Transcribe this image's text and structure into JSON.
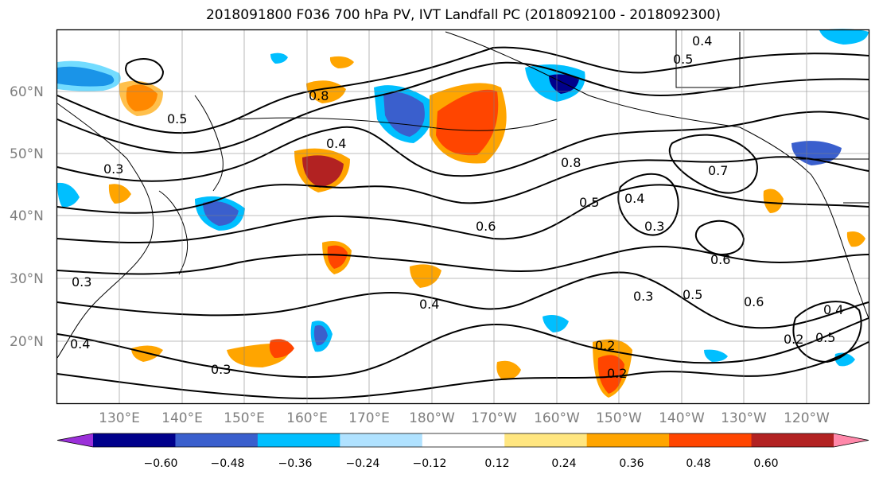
{
  "title": "2018091800 F036 700 hPa PV, IVT Landfall PC (2018092100 - 2018092300)",
  "map": {
    "lat_labels": [
      "60°N",
      "50°N",
      "40°N",
      "30°N",
      "20°N"
    ],
    "lon_labels": [
      "130°E",
      "140°E",
      "150°E",
      "160°E",
      "170°E",
      "180°W",
      "170°W",
      "160°W",
      "150°W",
      "140°W",
      "130°W",
      "120°W"
    ],
    "contour_labels": [
      "0.4",
      "0.8",
      "0.5",
      "0.4",
      "0.3",
      "0.5",
      "0.8",
      "0.7",
      "0.5",
      "0.4",
      "0.3",
      "0.6",
      "0.6",
      "0.4",
      "0.6",
      "0.5",
      "0.3",
      "0.2",
      "0.2",
      "0.4",
      "0.3",
      "0.3",
      "0.2",
      "0.5",
      "0.4"
    ],
    "colors": {
      "land_line": "#000000",
      "grid": "#808080",
      "frame": "#000000"
    }
  },
  "colorbar": {
    "tick_labels": [
      "−0.60",
      "−0.48",
      "−0.36",
      "−0.24",
      "−0.12",
      "0.12",
      "0.24",
      "0.36",
      "0.48",
      "0.60"
    ],
    "colors": [
      "#9b30d9",
      "#00008b",
      "#3a5fcd",
      "#00bfff",
      "#b0e2ff",
      "#ffffff",
      "#ffe680",
      "#ffa500",
      "#ff4500",
      "#b22222",
      "#ff88aa"
    ]
  }
}
